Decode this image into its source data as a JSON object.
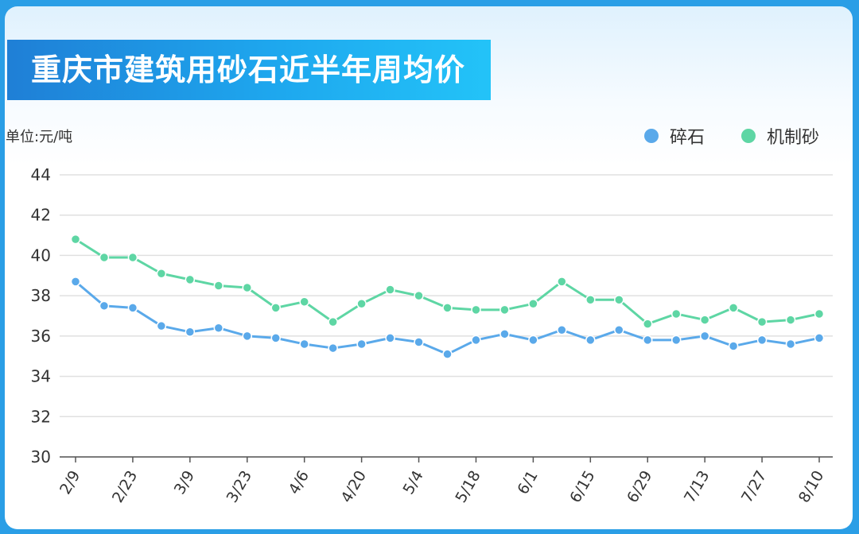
{
  "title": "重庆市建筑用砂石近半年周均价",
  "unit_label": "单位:元/吨",
  "colors": {
    "series_a": "#5aa9ea",
    "series_b": "#5ed6a4",
    "grid": "#e0e0e0",
    "title_bg": "#1f9be8"
  },
  "chart_data": {
    "type": "line",
    "title": "重庆市建筑用砂石近半年周均价",
    "ylabel": "单位:元/吨",
    "ylim": [
      30,
      44
    ],
    "yticks": [
      "30",
      "32",
      "34",
      "36",
      "38",
      "40",
      "42",
      "44"
    ],
    "x": [
      "2/9",
      "2/16",
      "2/23",
      "3/2",
      "3/9",
      "3/16",
      "3/23",
      "3/30",
      "4/6",
      "4/13",
      "4/20",
      "4/27",
      "5/4",
      "5/11",
      "5/18",
      "5/25",
      "6/1",
      "6/8",
      "6/15",
      "6/22",
      "6/29",
      "7/6",
      "7/13",
      "7/20",
      "7/27",
      "8/3",
      "8/10"
    ],
    "xtick_labels": [
      "2/9",
      "2/23",
      "3/9",
      "3/23",
      "4/6",
      "4/20",
      "5/4",
      "5/18",
      "6/1",
      "6/15",
      "6/29",
      "7/13",
      "7/27",
      "8/10"
    ],
    "legend_position": "top-right",
    "grid": true,
    "series": [
      {
        "name": "碎石",
        "color": "#5aa9ea",
        "values": [
          38.7,
          37.5,
          37.4,
          36.5,
          36.2,
          36.4,
          36.0,
          35.9,
          35.6,
          35.4,
          35.6,
          35.9,
          35.7,
          35.1,
          35.8,
          36.1,
          35.8,
          36.3,
          35.8,
          36.3,
          35.8,
          35.8,
          36.0,
          35.5,
          35.8,
          35.6,
          35.9
        ]
      },
      {
        "name": "机制砂",
        "color": "#5ed6a4",
        "values": [
          40.8,
          39.9,
          39.9,
          39.1,
          38.8,
          38.5,
          38.4,
          37.4,
          37.7,
          36.7,
          37.6,
          38.3,
          38.0,
          37.4,
          37.3,
          37.3,
          37.6,
          38.7,
          37.8,
          37.8,
          36.6,
          37.1,
          36.8,
          37.4,
          36.7,
          36.8,
          37.1
        ]
      }
    ]
  }
}
